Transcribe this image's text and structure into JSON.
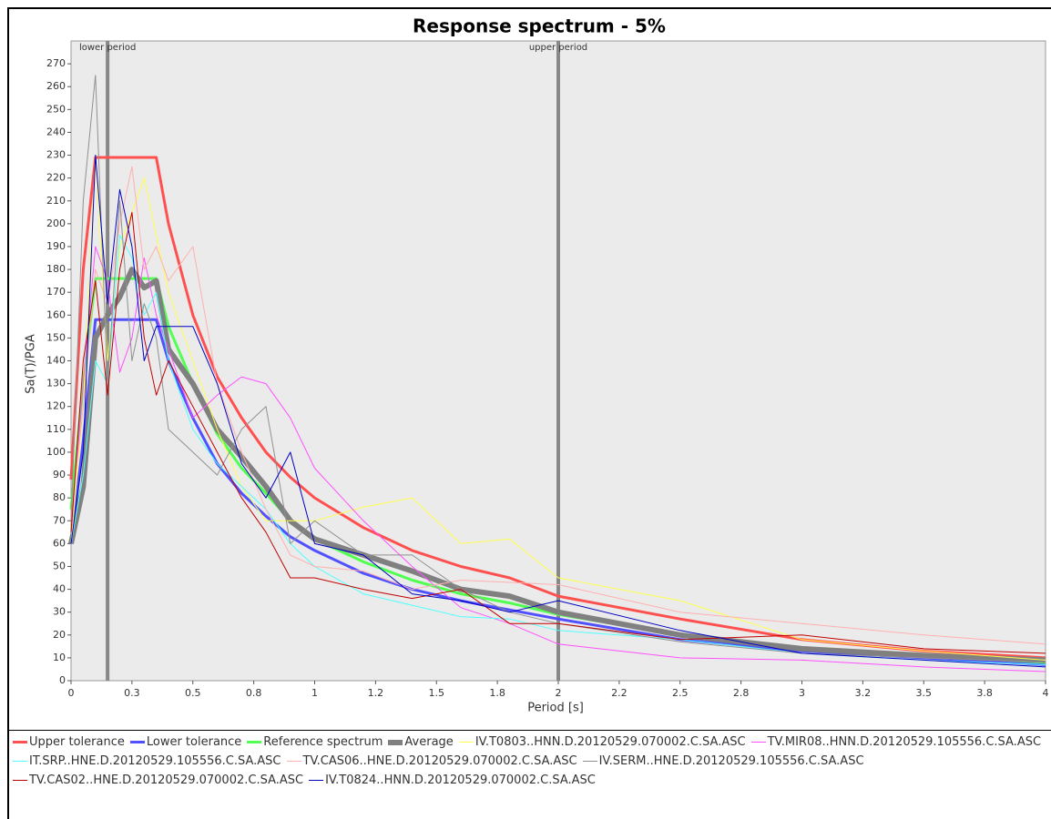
{
  "chart_data": {
    "type": "line",
    "title": "Response spectrum - 5%",
    "x_label": "Period [s]",
    "y_label": "Sa(T)/PGA",
    "xlim": [
      0,
      4.0
    ],
    "ylim": [
      0,
      280
    ],
    "xticks": [
      0.0,
      {
        "value": 0.25,
        "label": "0.3"
      },
      0.5,
      {
        "value": 0.75,
        "label": "0.8"
      },
      1.0,
      {
        "value": 1.25,
        "label": "1.2"
      },
      1.5,
      {
        "value": 1.75,
        "label": "1.8"
      },
      2.0,
      {
        "value": 2.25,
        "label": "2.2"
      },
      2.5,
      {
        "value": 2.75,
        "label": "2.8"
      },
      3.0,
      {
        "value": 3.25,
        "label": "3.2"
      },
      3.5,
      {
        "value": 3.75,
        "label": "3.8"
      },
      4.0
    ],
    "yticks": [
      0,
      10,
      20,
      30,
      40,
      50,
      60,
      70,
      80,
      90,
      100,
      110,
      120,
      130,
      140,
      150,
      160,
      170,
      180,
      190,
      200,
      210,
      220,
      230,
      240,
      250,
      260,
      270
    ],
    "markers": [
      {
        "x": 0.15,
        "label": "lower period"
      },
      {
        "x": 2.0,
        "label": "upper period"
      }
    ],
    "x": [
      0,
      0.05,
      0.1,
      0.15,
      0.2,
      0.25,
      0.3,
      0.35,
      0.4,
      0.5,
      0.6,
      0.7,
      0.8,
      0.9,
      1.0,
      1.2,
      1.4,
      1.6,
      1.8,
      2.0,
      2.5,
      3.0,
      3.5,
      4.0
    ],
    "series": [
      {
        "name": "Upper tolerance",
        "color": "#ff5050",
        "width": 3,
        "values": [
          88,
          180,
          229,
          229,
          229,
          229,
          229,
          229,
          200,
          160,
          133,
          115,
          100,
          89,
          80,
          67,
          57,
          50,
          45,
          37,
          27,
          18,
          13,
          10
        ]
      },
      {
        "name": "Lower tolerance",
        "color": "#5050ff",
        "width": 3,
        "values": [
          60,
          105,
          158,
          158,
          158,
          158,
          158,
          158,
          140,
          115,
          95,
          82,
          72,
          63,
          57,
          47,
          40,
          35,
          31,
          27,
          18,
          13,
          10,
          7
        ]
      },
      {
        "name": "Reference spectrum",
        "color": "#50ff50",
        "width": 3,
        "values": [
          75,
          130,
          176,
          176,
          176,
          176,
          176,
          176,
          155,
          130,
          108,
          93,
          82,
          70,
          62,
          52,
          44,
          38,
          34,
          29,
          20,
          14,
          11,
          8
        ]
      },
      {
        "name": "Average",
        "color": "#808080",
        "width": 6,
        "values": [
          60,
          85,
          150,
          160,
          168,
          180,
          172,
          175,
          145,
          130,
          110,
          98,
          85,
          70,
          62,
          55,
          48,
          40,
          37,
          30,
          20,
          14,
          11,
          9
        ]
      },
      {
        "name": "IV.T0803..HNN.D.20120529.070002.C.SA.ASC",
        "color": "#ffff50",
        "width": 1,
        "values": [
          60,
          120,
          230,
          140,
          190,
          205,
          220,
          195,
          170,
          140,
          110,
          85,
          70,
          70,
          70,
          76,
          80,
          60,
          62,
          45,
          35,
          18,
          13,
          9
        ]
      },
      {
        "name": "TV.MIR08..HNN.D.20120529.105556.C.SA.ASC",
        "color": "#ff50ff",
        "width": 1,
        "values": [
          65,
          130,
          190,
          175,
          135,
          150,
          185,
          160,
          145,
          115,
          125,
          133,
          130,
          115,
          93,
          70,
          50,
          32,
          25,
          16,
          10,
          9,
          6,
          4
        ]
      },
      {
        "name": "IT.SRP..HNE.D.20120529.105556.C.SA.ASC",
        "color": "#50ffff",
        "width": 1,
        "values": [
          60,
          90,
          140,
          130,
          195,
          185,
          160,
          170,
          140,
          110,
          95,
          85,
          75,
          60,
          50,
          38,
          33,
          28,
          27,
          22,
          18,
          12,
          9,
          7
        ]
      },
      {
        "name": "TV.CAS06..HNE.D.20120529.070002.C.SA.ASC",
        "color": "#ffb0b0",
        "width": 1,
        "values": [
          70,
          120,
          180,
          165,
          200,
          225,
          180,
          190,
          175,
          190,
          130,
          100,
          75,
          55,
          50,
          48,
          40,
          44,
          43,
          42,
          30,
          25,
          20,
          16
        ]
      },
      {
        "name": "IV.SERM..HNE.D.20120529.105556.C.SA.ASC",
        "color": "#909090",
        "width": 1,
        "values": [
          70,
          210,
          265,
          130,
          210,
          140,
          165,
          150,
          110,
          100,
          90,
          110,
          120,
          60,
          70,
          55,
          55,
          40,
          30,
          25,
          17,
          12,
          10,
          8
        ]
      },
      {
        "name": "TV.CAS02..HNE.D.20120529.070002.C.SA.ASC",
        "color": "#c00000",
        "width": 1,
        "values": [
          65,
          140,
          175,
          125,
          180,
          205,
          150,
          125,
          140,
          120,
          100,
          80,
          65,
          45,
          45,
          40,
          36,
          40,
          25,
          25,
          18,
          20,
          14,
          12
        ]
      },
      {
        "name": "IV.T0824..HNN.D.20120529.070002.C.SA.ASC",
        "color": "#0000c0",
        "width": 1,
        "values": [
          60,
          100,
          230,
          165,
          215,
          190,
          140,
          155,
          155,
          155,
          130,
          95,
          80,
          100,
          60,
          55,
          38,
          35,
          30,
          35,
          22,
          12,
          9,
          6
        ]
      }
    ]
  }
}
